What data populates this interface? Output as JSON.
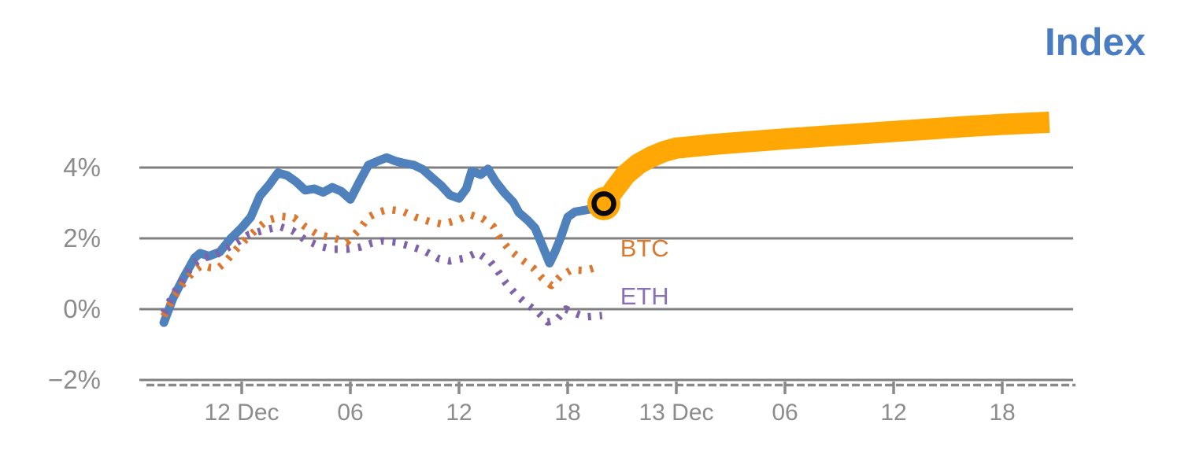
{
  "title": {
    "text": "Index",
    "color": "#4a7cc2"
  },
  "axes": {
    "label_color": "#8c8c8c",
    "grid_color": "#808080",
    "axis_dash_color": "#8a8a8a",
    "y_ticks": [
      {
        "value": 4,
        "label": "4%"
      },
      {
        "value": 2,
        "label": "2%"
      },
      {
        "value": 0,
        "label": "0%"
      },
      {
        "value": -2,
        "label": "−2%"
      }
    ],
    "x_ticks": [
      {
        "t": 0,
        "label": "12 Dec"
      },
      {
        "t": 6,
        "label": "06"
      },
      {
        "t": 12,
        "label": "12"
      },
      {
        "t": 18,
        "label": "18"
      },
      {
        "t": 24,
        "label": "13 Dec"
      },
      {
        "t": 30,
        "label": "06"
      },
      {
        "t": 36,
        "label": "12"
      },
      {
        "t": 42,
        "label": "18"
      }
    ]
  },
  "series_labels": [
    {
      "id": "btc",
      "text": "BTC",
      "color": "#d9782e",
      "t": 20.9,
      "value": 1.73
    },
    {
      "id": "eth",
      "text": "ETH",
      "color": "#8a70b5",
      "t": 20.9,
      "value": 0.38
    }
  ],
  "chart_data": {
    "type": "line",
    "title": "Index",
    "x_unit": "hours relative to 12 Dec 00:00",
    "y_unit": "percent change",
    "xlim": [
      -5.65,
      45.9
    ],
    "ylim": [
      -2.4,
      6.55
    ],
    "grid": "horizontal-only",
    "legend_position": "inline-labels-right-of-lines",
    "marker": {
      "name": "current-value-marker",
      "t": 20,
      "value": 2.98,
      "fill_color": "#ffa805",
      "ring_color": "#0a0a0a"
    },
    "series": [
      {
        "name": "Index (history)",
        "color": "#4f81bd",
        "line_style": "solid",
        "points": [
          [
            -4.3,
            -0.38
          ],
          [
            -3.8,
            0.3
          ],
          [
            -3.2,
            0.9
          ],
          [
            -2.6,
            1.45
          ],
          [
            -2.3,
            1.58
          ],
          [
            -1.8,
            1.5
          ],
          [
            -1.2,
            1.62
          ],
          [
            -0.6,
            2.0
          ],
          [
            0,
            2.3
          ],
          [
            0.5,
            2.6
          ],
          [
            1,
            3.2
          ],
          [
            1.5,
            3.5
          ],
          [
            2,
            3.85
          ],
          [
            2.5,
            3.78
          ],
          [
            3,
            3.6
          ],
          [
            3.5,
            3.36
          ],
          [
            4,
            3.4
          ],
          [
            4.5,
            3.3
          ],
          [
            5,
            3.44
          ],
          [
            5.5,
            3.33
          ],
          [
            6,
            3.1
          ],
          [
            6.5,
            3.6
          ],
          [
            7,
            4.07
          ],
          [
            7.5,
            4.18
          ],
          [
            8,
            4.28
          ],
          [
            8.5,
            4.18
          ],
          [
            9,
            4.12
          ],
          [
            9.5,
            4.07
          ],
          [
            10,
            3.95
          ],
          [
            10.5,
            3.72
          ],
          [
            11,
            3.5
          ],
          [
            11.5,
            3.22
          ],
          [
            12,
            3.13
          ],
          [
            12.4,
            3.4
          ],
          [
            12.7,
            3.9
          ],
          [
            13.2,
            3.8
          ],
          [
            13.6,
            3.96
          ],
          [
            14,
            3.62
          ],
          [
            14.5,
            3.29
          ],
          [
            15,
            3.02
          ],
          [
            15.3,
            2.73
          ],
          [
            15.8,
            2.51
          ],
          [
            16.2,
            2.29
          ],
          [
            16.6,
            1.8
          ],
          [
            17,
            1.3
          ],
          [
            17.3,
            1.62
          ],
          [
            17.6,
            2.0
          ],
          [
            18,
            2.6
          ],
          [
            18.4,
            2.75
          ],
          [
            19,
            2.8
          ],
          [
            19.5,
            2.85
          ],
          [
            20,
            2.98
          ]
        ]
      },
      {
        "name": "BTC",
        "color": "#d9782e",
        "line_style": "dotted",
        "points": [
          [
            -4.3,
            -0.2
          ],
          [
            -3.8,
            0.3
          ],
          [
            -3.2,
            0.75
          ],
          [
            -2.6,
            1.1
          ],
          [
            -2.2,
            1.24
          ],
          [
            -1.8,
            1.18
          ],
          [
            -1.3,
            1.16
          ],
          [
            -0.9,
            1.33
          ],
          [
            -0.3,
            1.69
          ],
          [
            0.2,
            1.96
          ],
          [
            0.9,
            2.29
          ],
          [
            1.4,
            2.51
          ],
          [
            2.2,
            2.62
          ],
          [
            2.9,
            2.58
          ],
          [
            3.5,
            2.33
          ],
          [
            4.2,
            2.11
          ],
          [
            5,
            2.02
          ],
          [
            5.8,
            1.89
          ],
          [
            6.5,
            2.25
          ],
          [
            7,
            2.6
          ],
          [
            7.5,
            2.73
          ],
          [
            8.1,
            2.82
          ],
          [
            8.9,
            2.76
          ],
          [
            9.6,
            2.6
          ],
          [
            10.4,
            2.47
          ],
          [
            11.1,
            2.4
          ],
          [
            12,
            2.53
          ],
          [
            12.6,
            2.67
          ],
          [
            13.3,
            2.56
          ],
          [
            13.9,
            2.33
          ],
          [
            14.3,
            1.98
          ],
          [
            14.8,
            1.67
          ],
          [
            15.4,
            1.42
          ],
          [
            16.1,
            1.16
          ],
          [
            16.6,
            0.87
          ],
          [
            17.1,
            0.67
          ],
          [
            17.6,
            0.93
          ],
          [
            18.2,
            1.11
          ],
          [
            19,
            1.09
          ],
          [
            19.7,
            1.2
          ]
        ]
      },
      {
        "name": "ETH",
        "color": "#7e63a9",
        "line_style": "dotted",
        "points": [
          [
            -4.3,
            -0.1
          ],
          [
            -3.8,
            0.4
          ],
          [
            -3.2,
            0.9
          ],
          [
            -2.6,
            1.3
          ],
          [
            -2.2,
            1.44
          ],
          [
            -1.5,
            1.51
          ],
          [
            -0.9,
            1.69
          ],
          [
            -0.2,
            1.91
          ],
          [
            0.4,
            2.11
          ],
          [
            1.3,
            2.24
          ],
          [
            2.1,
            2.33
          ],
          [
            2.8,
            2.22
          ],
          [
            3.5,
            1.96
          ],
          [
            4.3,
            1.78
          ],
          [
            5,
            1.69
          ],
          [
            5.8,
            1.69
          ],
          [
            6.5,
            1.75
          ],
          [
            7.2,
            1.87
          ],
          [
            7.8,
            1.93
          ],
          [
            8.5,
            1.89
          ],
          [
            9.3,
            1.78
          ],
          [
            10.1,
            1.64
          ],
          [
            10.9,
            1.42
          ],
          [
            11.5,
            1.36
          ],
          [
            12.3,
            1.44
          ],
          [
            13,
            1.6
          ],
          [
            13.7,
            1.36
          ],
          [
            14.1,
            1.11
          ],
          [
            14.6,
            0.73
          ],
          [
            15.1,
            0.44
          ],
          [
            15.7,
            0.16
          ],
          [
            16.4,
            -0.11
          ],
          [
            16.9,
            -0.36
          ],
          [
            17.4,
            -0.29
          ],
          [
            17.9,
            0.0
          ],
          [
            18.5,
            -0.13
          ],
          [
            19,
            -0.22
          ],
          [
            19.9,
            -0.18
          ]
        ]
      },
      {
        "name": "Index (projection)",
        "color": "#ffa805",
        "line_style": "solid-thick",
        "points": [
          [
            20,
            2.98
          ],
          [
            20.6,
            3.4
          ],
          [
            21.2,
            3.8
          ],
          [
            21.9,
            4.1
          ],
          [
            22.6,
            4.3
          ],
          [
            23.3,
            4.45
          ],
          [
            24,
            4.55
          ],
          [
            25,
            4.6
          ],
          [
            26,
            4.65
          ],
          [
            28,
            4.73
          ],
          [
            30,
            4.81
          ],
          [
            32,
            4.88
          ],
          [
            34,
            4.95
          ],
          [
            36,
            5.02
          ],
          [
            38,
            5.09
          ],
          [
            40,
            5.16
          ],
          [
            42,
            5.22
          ],
          [
            44.6,
            5.28
          ]
        ]
      }
    ]
  }
}
